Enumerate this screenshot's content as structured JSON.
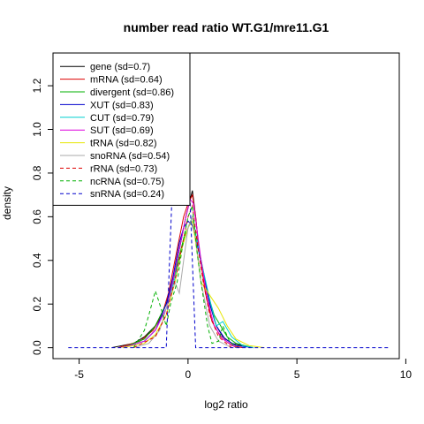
{
  "chart_data": {
    "type": "line",
    "title": "number read ratio WT.G1/mre11.G1",
    "xlabel": "log2 ratio",
    "ylabel": "density",
    "xlim": [
      -6.2,
      9.7
    ],
    "ylim": [
      -0.05,
      1.35
    ],
    "x_ticks": [
      -5,
      0,
      5,
      10
    ],
    "x_tick_labels": [
      "-5",
      "0",
      "5",
      "10"
    ],
    "y_ticks": [
      0.0,
      0.2,
      0.4,
      0.6,
      0.8,
      1.0,
      1.2
    ],
    "y_tick_labels": [
      "0.0",
      "0.2",
      "0.4",
      "0.6",
      "0.8",
      "1.0",
      "1.2"
    ],
    "legend_position": "top-left",
    "grid": false,
    "series": [
      {
        "name": "gene (sd=0.7)",
        "color": "#000000",
        "dash": "solid",
        "points": [
          [
            -3.5,
            0
          ],
          [
            -2.5,
            0.02
          ],
          [
            -2,
            0.05
          ],
          [
            -1.5,
            0.1
          ],
          [
            -1,
            0.2
          ],
          [
            -0.7,
            0.3
          ],
          [
            -0.5,
            0.4
          ],
          [
            -0.3,
            0.5
          ],
          [
            -0.1,
            0.6
          ],
          [
            0.1,
            0.68
          ],
          [
            0.2,
            0.72
          ],
          [
            0.35,
            0.6
          ],
          [
            0.5,
            0.45
          ],
          [
            0.8,
            0.3
          ],
          [
            1,
            0.2
          ],
          [
            1.3,
            0.1
          ],
          [
            1.6,
            0.05
          ],
          [
            2,
            0.02
          ],
          [
            2.5,
            0.01
          ],
          [
            3,
            0
          ]
        ]
      },
      {
        "name": "mRNA (sd=0.64)",
        "color": "#dd0000",
        "dash": "solid",
        "points": [
          [
            -3.2,
            0
          ],
          [
            -2.2,
            0.03
          ],
          [
            -1.6,
            0.08
          ],
          [
            -1.2,
            0.15
          ],
          [
            -0.9,
            0.25
          ],
          [
            -0.5,
            0.45
          ],
          [
            -0.2,
            0.6
          ],
          [
            0,
            0.66
          ],
          [
            0.2,
            0.7
          ],
          [
            0.35,
            0.6
          ],
          [
            0.5,
            0.45
          ],
          [
            0.8,
            0.25
          ],
          [
            1.1,
            0.12
          ],
          [
            1.5,
            0.05
          ],
          [
            2,
            0.01
          ],
          [
            2.5,
            0
          ]
        ]
      },
      {
        "name": "divergent (sd=0.86)",
        "color": "#00b000",
        "dash": "solid",
        "points": [
          [
            -3,
            0
          ],
          [
            -2,
            0.04
          ],
          [
            -1.5,
            0.1
          ],
          [
            -1,
            0.2
          ],
          [
            -0.7,
            0.3
          ],
          [
            -0.4,
            0.42
          ],
          [
            -0.2,
            0.5
          ],
          [
            0,
            0.55
          ],
          [
            0.2,
            0.6
          ],
          [
            0.4,
            0.5
          ],
          [
            0.6,
            0.4
          ],
          [
            0.9,
            0.25
          ],
          [
            1.2,
            0.15
          ],
          [
            1.5,
            0.1
          ],
          [
            1.8,
            0.05
          ],
          [
            2.2,
            0.02
          ],
          [
            3,
            0
          ]
        ]
      },
      {
        "name": "XUT (sd=0.83)",
        "color": "#0000cc",
        "dash": "solid",
        "points": [
          [
            -3,
            0
          ],
          [
            -2,
            0.03
          ],
          [
            -1.5,
            0.08
          ],
          [
            -1,
            0.2
          ],
          [
            -0.7,
            0.32
          ],
          [
            -0.4,
            0.48
          ],
          [
            -0.2,
            0.55
          ],
          [
            0,
            0.58
          ],
          [
            0.2,
            0.56
          ],
          [
            0.4,
            0.48
          ],
          [
            0.7,
            0.35
          ],
          [
            1,
            0.2
          ],
          [
            1.3,
            0.1
          ],
          [
            1.7,
            0.04
          ],
          [
            2.2,
            0.01
          ],
          [
            3,
            0
          ]
        ]
      },
      {
        "name": "CUT (sd=0.79)",
        "color": "#00d0d0",
        "dash": "solid",
        "points": [
          [
            -3,
            0
          ],
          [
            -2,
            0.03
          ],
          [
            -1.5,
            0.08
          ],
          [
            -1,
            0.18
          ],
          [
            -0.6,
            0.32
          ],
          [
            -0.3,
            0.45
          ],
          [
            0,
            0.55
          ],
          [
            0.15,
            0.58
          ],
          [
            0.3,
            0.55
          ],
          [
            0.6,
            0.4
          ],
          [
            1,
            0.22
          ],
          [
            1.3,
            0.1
          ],
          [
            1.6,
            0.12
          ],
          [
            2,
            0.05
          ],
          [
            2.5,
            0.01
          ],
          [
            3,
            0
          ]
        ]
      },
      {
        "name": "SUT (sd=0.69)",
        "color": "#dd00dd",
        "dash": "solid",
        "points": [
          [
            -3,
            0
          ],
          [
            -2,
            0.03
          ],
          [
            -1.5,
            0.08
          ],
          [
            -1,
            0.18
          ],
          [
            -0.7,
            0.3
          ],
          [
            -0.4,
            0.45
          ],
          [
            -0.1,
            0.6
          ],
          [
            0.1,
            0.68
          ],
          [
            0.25,
            0.66
          ],
          [
            0.4,
            0.55
          ],
          [
            0.6,
            0.4
          ],
          [
            0.9,
            0.22
          ],
          [
            1.2,
            0.1
          ],
          [
            1.6,
            0.04
          ],
          [
            2.2,
            0
          ]
        ]
      },
      {
        "name": "tRNA (sd=0.82)",
        "color": "#e6e600",
        "dash": "solid",
        "points": [
          [
            -3,
            0
          ],
          [
            -2,
            0.02
          ],
          [
            -1.5,
            0.06
          ],
          [
            -1,
            0.15
          ],
          [
            -0.6,
            0.3
          ],
          [
            -0.3,
            0.45
          ],
          [
            0,
            0.55
          ],
          [
            0.2,
            0.58
          ],
          [
            0.4,
            0.45
          ],
          [
            0.6,
            0.3
          ],
          [
            1,
            0.24
          ],
          [
            1.4,
            0.18
          ],
          [
            1.8,
            0.1
          ],
          [
            2.2,
            0.04
          ],
          [
            2.8,
            0.01
          ],
          [
            3.5,
            0
          ]
        ]
      },
      {
        "name": "snoRNA (sd=0.54)",
        "color": "#aaaaaa",
        "dash": "solid",
        "points": [
          [
            -2.5,
            0
          ],
          [
            -1.8,
            0.02
          ],
          [
            -1.3,
            0.08
          ],
          [
            -1,
            0.18
          ],
          [
            -0.6,
            0.3
          ],
          [
            -0.4,
            0.25
          ],
          [
            -0.2,
            0.4
          ],
          [
            0,
            0.55
          ],
          [
            0.2,
            0.6
          ],
          [
            0.35,
            0.5
          ],
          [
            0.6,
            0.3
          ],
          [
            0.8,
            0.2
          ],
          [
            1,
            0.1
          ],
          [
            1.4,
            0.03
          ],
          [
            2,
            0
          ]
        ]
      },
      {
        "name": "rRNA (sd=0.73)",
        "color": "#dd0000",
        "dash": "dashed",
        "points": [
          [
            -2.5,
            0
          ],
          [
            -1.5,
            0.05
          ],
          [
            -1,
            0.15
          ],
          [
            -0.5,
            0.35
          ],
          [
            -0.2,
            0.5
          ],
          [
            0,
            0.6
          ],
          [
            0.2,
            0.65
          ],
          [
            0.4,
            0.5
          ],
          [
            0.7,
            0.3
          ],
          [
            1,
            0.15
          ],
          [
            1.4,
            0.05
          ],
          [
            2,
            0
          ]
        ]
      },
      {
        "name": "ncRNA (sd=0.75)",
        "color": "#00b000",
        "dash": "dashed",
        "points": [
          [
            -2.5,
            0
          ],
          [
            -2,
            0.08
          ],
          [
            -1.8,
            0.15
          ],
          [
            -1.5,
            0.26
          ],
          [
            -1.3,
            0.2
          ],
          [
            -1,
            0.1
          ],
          [
            -0.8,
            0.2
          ],
          [
            -0.5,
            0.3
          ],
          [
            -0.2,
            0.5
          ],
          [
            0,
            0.6
          ],
          [
            0.2,
            0.65
          ],
          [
            0.4,
            0.45
          ],
          [
            0.6,
            0.3
          ],
          [
            0.9,
            0.1
          ],
          [
            1.1,
            0.02
          ],
          [
            1.4,
            0.03
          ],
          [
            1.6,
            0.1
          ],
          [
            1.9,
            0.03
          ],
          [
            2.2,
            0
          ]
        ]
      },
      {
        "name": "snRNA (sd=0.24)",
        "color": "#0000cc",
        "dash": "dashed",
        "points": [
          [
            -5.5,
            0
          ],
          [
            -1,
            0
          ],
          [
            -0.75,
            0.66
          ],
          [
            0.1,
            0.66
          ],
          [
            0.35,
            0
          ],
          [
            9.3,
            0
          ]
        ]
      }
    ]
  }
}
